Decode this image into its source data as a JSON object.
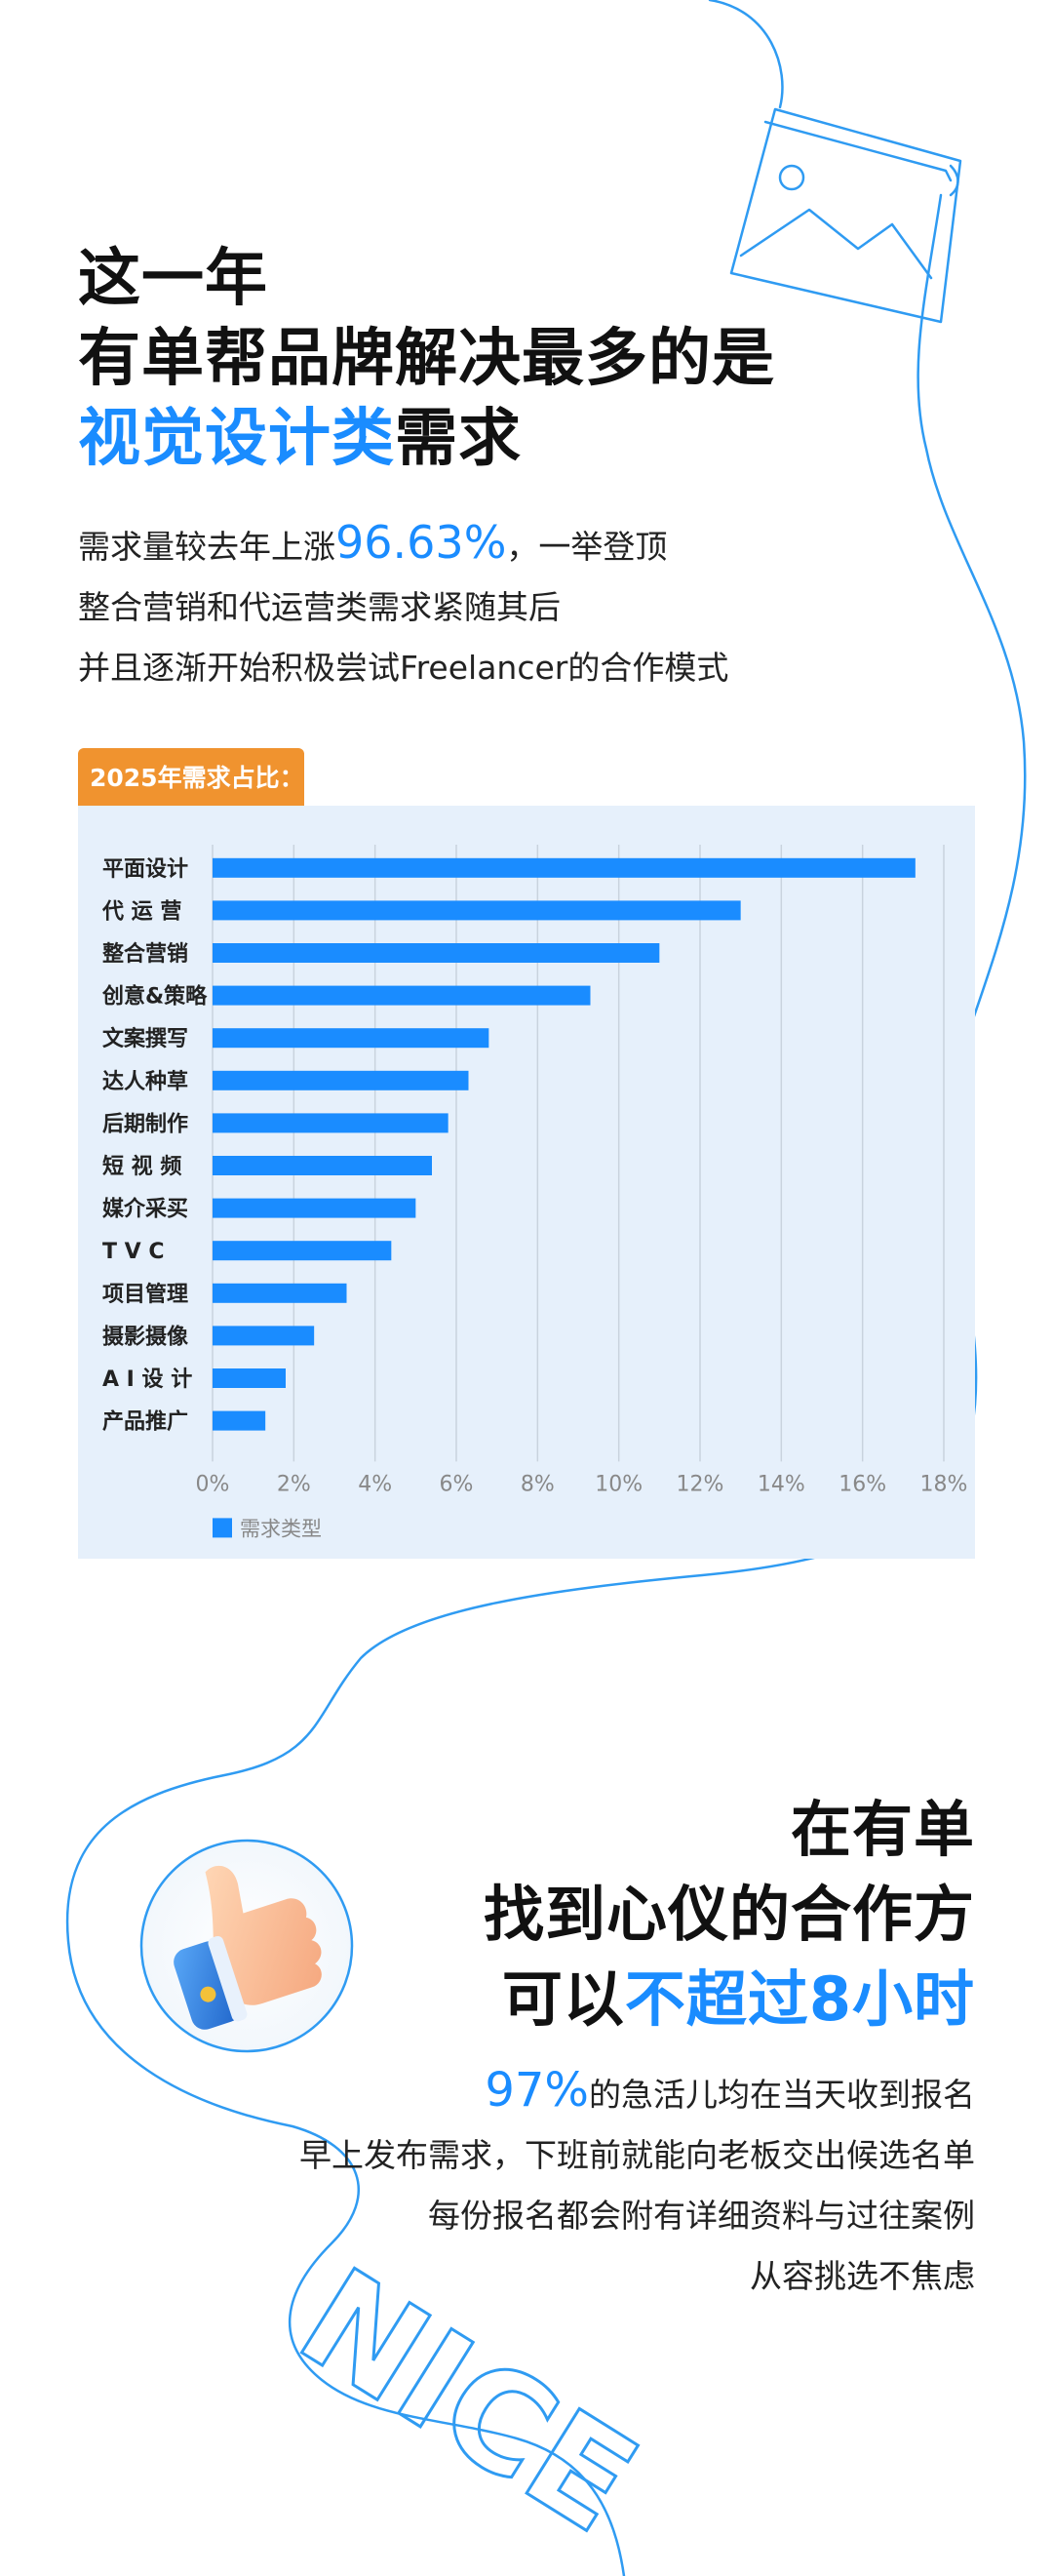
{
  "headline1": {
    "line1": "这一年",
    "line2": "有单帮品牌解决最多的是",
    "line3_blue": "视觉设计类",
    "line3_rest": "需求"
  },
  "para1": {
    "line1_pre": "需求量较去年上涨",
    "line1_num": "96.63%",
    "line1_post": "，一举登顶",
    "line2": "整合营销和代运营类需求紧随其后",
    "line3": "并且逐渐开始积极尝试Freelancer的合作模式"
  },
  "chart_tag": "2025年需求占比：",
  "chart_data": {
    "type": "bar",
    "orientation": "horizontal",
    "categories": [
      "平面设计",
      "代 运 营",
      "整合营销",
      "创意&策略",
      "文案撰写",
      "达人种草",
      "后期制作",
      "短 视 频",
      "媒介采买",
      "T V C",
      "项目管理",
      "摄影摄像",
      "A I 设 计",
      "产品推广"
    ],
    "series": [
      {
        "name": "需求类型",
        "values": [
          17.3,
          13.0,
          11.0,
          9.3,
          6.8,
          6.3,
          5.8,
          5.4,
          5.0,
          4.4,
          3.3,
          2.5,
          1.8,
          1.3
        ]
      }
    ],
    "xlim": [
      0,
      18
    ],
    "xticks": [
      "0%",
      "2%",
      "4%",
      "6%",
      "8%",
      "10%",
      "12%",
      "14%",
      "16%",
      "18%"
    ],
    "grid": "vertical",
    "legend": "bottom-left",
    "color": "#1a8cff"
  },
  "headline2": {
    "line1": "在有单",
    "line2": "找到心仪的合作方",
    "line3_pre": "可以",
    "line3_blue": "不超过8小时"
  },
  "para2": {
    "line1_num": "97%",
    "line1_rest": "的急活儿均在当天收到报名",
    "line2": "早上发布需求，下班前就能向老板交出候选名单",
    "line3": "每份报名都会附有详细资料与过往案例",
    "line4": "从容挑选不焦虑"
  },
  "deco_text": "NICE",
  "colors": {
    "accent": "#1a8cff",
    "tag": "#f0932f",
    "panel": "#e6f0fb"
  }
}
